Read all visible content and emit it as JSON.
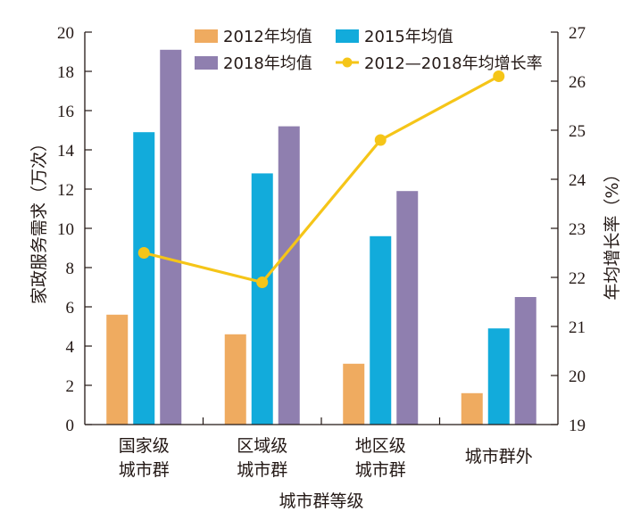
{
  "chart_data": {
    "type": "bar",
    "title": "",
    "categories": [
      [
        "国家级",
        "城市群"
      ],
      [
        "区域级",
        "城市群"
      ],
      [
        "地区级",
        "城市群"
      ],
      [
        "城市群外"
      ]
    ],
    "xlabel": "城市群等级",
    "ylabel": "家政服务需求（万次）",
    "y2label": "年均增长率（%）",
    "ylim": [
      0,
      20
    ],
    "yticks": [
      0,
      2,
      4,
      6,
      8,
      10,
      12,
      14,
      16,
      18,
      20
    ],
    "y2lim": [
      19,
      27
    ],
    "y2ticks": [
      19,
      20,
      21,
      22,
      23,
      24,
      25,
      26,
      27
    ],
    "grid": false,
    "legend_position": "top",
    "series": [
      {
        "name": "2012年均值",
        "type": "bar",
        "axis": "left",
        "color": "#EFAB60",
        "values": [
          5.6,
          4.6,
          3.1,
          1.6
        ]
      },
      {
        "name": "2015年均值",
        "type": "bar",
        "axis": "left",
        "color": "#12ABDB",
        "values": [
          14.9,
          12.8,
          9.6,
          4.9
        ]
      },
      {
        "name": "2018年均值",
        "type": "bar",
        "axis": "left",
        "color": "#8F7FAF",
        "values": [
          19.1,
          15.2,
          11.9,
          6.5
        ]
      },
      {
        "name": "2012—2018年均增长率",
        "type": "line",
        "axis": "right",
        "color": "#F5C518",
        "values": [
          22.5,
          21.9,
          24.8,
          26.1
        ]
      }
    ]
  }
}
